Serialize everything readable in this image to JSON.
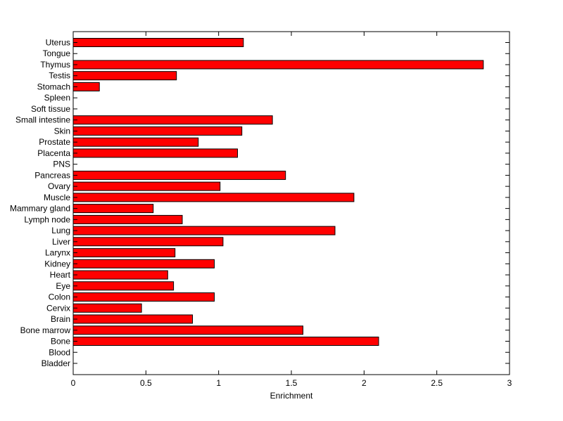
{
  "chart_data": {
    "type": "bar",
    "orientation": "horizontal",
    "title": "",
    "xlabel": "Enrichment",
    "ylabel": "",
    "xlim": [
      0,
      3
    ],
    "xticks": [
      0,
      0.5,
      1,
      1.5,
      2,
      2.5,
      3
    ],
    "xtick_labels": [
      "0",
      "0.5",
      "1",
      "1.5",
      "2",
      "2.5",
      "3"
    ],
    "grid": false,
    "bar_color": "#ff0000",
    "bar_edge_color": "#000000",
    "categories": [
      "Bladder",
      "Blood",
      "Bone",
      "Bone marrow",
      "Brain",
      "Cervix",
      "Colon",
      "Eye",
      "Heart",
      "Kidney",
      "Larynx",
      "Liver",
      "Lung",
      "Lymph node",
      "Mammary gland",
      "Muscle",
      "Ovary",
      "Pancreas",
      "PNS",
      "Placenta",
      "Prostate",
      "Skin",
      "Small intestine",
      "Soft tissue",
      "Spleen",
      "Stomach",
      "Testis",
      "Thymus",
      "Tongue",
      "Uterus"
    ],
    "values": [
      0,
      0,
      2.1,
      1.58,
      0.82,
      0.47,
      0.97,
      0.69,
      0.65,
      0.97,
      0.7,
      1.03,
      1.8,
      0.75,
      0.55,
      1.93,
      1.01,
      1.46,
      0,
      1.13,
      0.86,
      1.16,
      1.37,
      0,
      0,
      0.18,
      0.71,
      2.82,
      0,
      1.17
    ]
  }
}
